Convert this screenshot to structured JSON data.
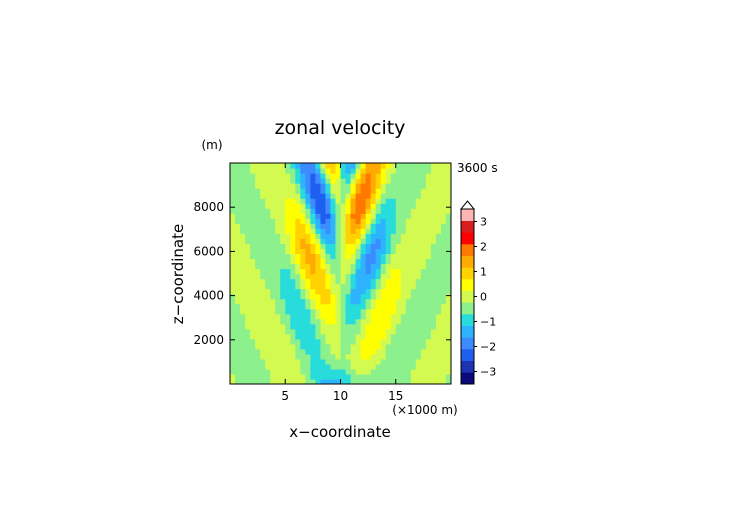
{
  "chart_data": {
    "type": "heatmap",
    "title": "zonal velocity",
    "time_label": "3600 s",
    "xlabel": "x−coordinate",
    "ylabel": "z−coordinate",
    "x_unit": "(×1000 m)",
    "y_unit": "(m)",
    "xlim": [
      0,
      20
    ],
    "ylim": [
      0,
      10000
    ],
    "xticks": [
      5,
      10,
      15
    ],
    "xtick_labels": [
      "5",
      "10",
      "15"
    ],
    "yticks": [
      2000,
      4000,
      6000,
      8000
    ],
    "ytick_labels": [
      "2000",
      "4000",
      "6000",
      "8000"
    ],
    "colorbar": {
      "min": -3.5,
      "max": 3.5,
      "step": 0.5,
      "ticks": [
        3,
        2,
        1,
        0,
        -1,
        -2,
        -3
      ],
      "tick_labels": [
        "3",
        "2",
        "1",
        "0",
        "−1",
        "−2",
        "−3"
      ],
      "over_color": "#ffffff",
      "colors": [
        "#0a0a7a",
        "#1e32b4",
        "#1f5ff0",
        "#3c8cff",
        "#2eb4ff",
        "#28dcdc",
        "#8cf08c",
        "#d2fa50",
        "#ffff00",
        "#ffd200",
        "#ffaa00",
        "#ff7800",
        "#ff0000",
        "#d81e1e",
        "#ffb4b4"
      ]
    }
  }
}
